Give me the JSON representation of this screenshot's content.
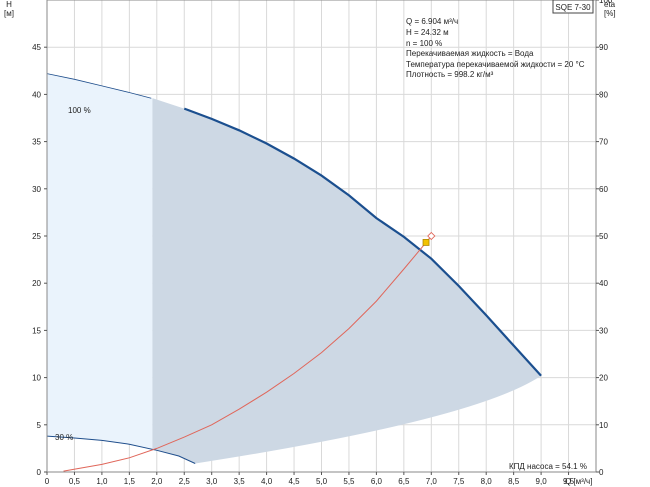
{
  "chart_data": {
    "type": "line",
    "title_box": "SQE 7-30",
    "x_axis": {
      "label": "Q [м³/ч]",
      "range": [
        0,
        10
      ],
      "ticks": [
        0,
        0.5,
        1,
        1.5,
        2,
        2.5,
        3,
        3.5,
        4,
        4.5,
        5,
        5.5,
        6,
        6.5,
        7,
        7.5,
        8,
        8.5,
        9,
        9.5
      ],
      "tick_labels": [
        "0",
        "0,5",
        "1,0",
        "1,5",
        "2,0",
        "2,5",
        "3,0",
        "3,5",
        "4,0",
        "4,5",
        "5,0",
        "5,5",
        "6,0",
        "6,5",
        "7,0",
        "7,5",
        "8,0",
        "8,5",
        "9,0",
        "9,5"
      ]
    },
    "y_left": {
      "label_top": "H",
      "label_unit": "[м]",
      "range": [
        0,
        50
      ],
      "ticks": [
        0,
        5,
        10,
        15,
        20,
        25,
        30,
        35,
        40,
        45
      ],
      "tick_labels": [
        "0",
        "5",
        "10",
        "15",
        "20",
        "25",
        "30",
        "35",
        "40",
        "45"
      ]
    },
    "y_right": {
      "label_top": "eta",
      "label_unit": "[%]",
      "range": [
        0,
        100
      ],
      "ticks": [
        0,
        10,
        20,
        30,
        40,
        50,
        60,
        70,
        80,
        90,
        100
      ],
      "tick_labels": [
        "0",
        "10",
        "20",
        "30",
        "40",
        "50",
        "60",
        "70",
        "80",
        "90",
        "100"
      ]
    },
    "grid": true,
    "info_lines": [
      "Q = 6.904 м³/ч",
      "H = 24.32 м",
      "n = 100 %",
      "Перекачиваемая жидкость = Вода",
      "Температура перекачиваемой жидкости = 20 °C",
      "Плотность = 998.2 кг/м³"
    ],
    "efficiency_label": "КПД насоса = 54.1 %",
    "series": [
      {
        "name": "100 %",
        "axis": "left",
        "x": [
          0,
          0.5,
          1.0,
          1.5,
          1.9,
          2.5,
          3.0,
          3.5,
          4.0,
          4.5,
          5.0,
          5.5,
          6.0,
          6.5,
          7.0,
          7.5,
          8.0,
          8.5,
          9.0
        ],
        "y": [
          42.2,
          41.6,
          40.9,
          40.2,
          39.6,
          38.5,
          37.4,
          36.2,
          34.8,
          33.2,
          31.4,
          29.3,
          26.9,
          24.9,
          22.6,
          19.7,
          16.6,
          13.4,
          10.2
        ]
      },
      {
        "name": "30 %",
        "axis": "left",
        "x": [
          0,
          0.5,
          1.0,
          1.5,
          2.0,
          2.4,
          2.7
        ],
        "y": [
          3.8,
          3.6,
          3.35,
          2.95,
          2.3,
          1.7,
          0.9
        ]
      },
      {
        "name": "",
        "axis": "right",
        "x": [
          0.3,
          1.0,
          1.5,
          2.0,
          2.5,
          3.0,
          3.5,
          4.0,
          4.5,
          5.0,
          5.5,
          6.0,
          6.5,
          6.904,
          7.0
        ],
        "y": [
          0.2,
          1.6,
          3.0,
          5.0,
          7.4,
          10.0,
          13.3,
          16.9,
          20.9,
          25.3,
          30.4,
          36.2,
          43.0,
          48.6,
          50.0
        ]
      }
    ],
    "operating_point": {
      "x": 6.904,
      "y": 24.32
    },
    "efficiency_point": {
      "x": 7.0,
      "y_eta": 50.0
    }
  }
}
